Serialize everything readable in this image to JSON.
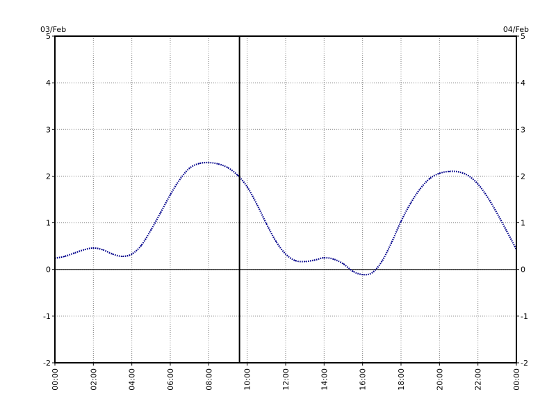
{
  "chart_data": {
    "type": "line",
    "date_left": "03/Feb",
    "date_right": "04/Feb",
    "xlabel": "",
    "ylabel": "",
    "xlim_hours": [
      0,
      24
    ],
    "ylim": [
      -2,
      5
    ],
    "x_ticks": [
      "00:00",
      "02:00",
      "04:00",
      "06:00",
      "08:00",
      "10:00",
      "12:00",
      "14:00",
      "16:00",
      "18:00",
      "20:00",
      "22:00",
      "00:00"
    ],
    "y_ticks": [
      "5",
      "4",
      "3",
      "2",
      "1",
      "0",
      "-1",
      "-2"
    ],
    "grid": true,
    "line_style": "dotted",
    "series_color": "#00008b",
    "marker_time_hours": 9.6,
    "series": [
      {
        "x_hours": [
          0,
          0.5,
          1,
          1.5,
          2,
          2.5,
          3,
          3.5,
          4,
          4.5,
          5,
          5.5,
          6,
          6.5,
          7,
          7.5,
          8,
          8.5,
          9,
          9.5,
          10,
          10.5,
          11,
          11.5,
          12,
          12.5,
          13,
          13.5,
          14,
          14.5,
          15,
          15.5,
          16,
          16.5,
          17,
          17.5,
          18,
          18.5,
          19,
          19.5,
          20,
          20.5,
          21,
          21.5,
          22,
          22.5,
          23,
          23.5,
          24
        ],
        "values": [
          0.24,
          0.28,
          0.35,
          0.42,
          0.46,
          0.42,
          0.33,
          0.28,
          0.33,
          0.52,
          0.85,
          1.22,
          1.6,
          1.93,
          2.17,
          2.27,
          2.29,
          2.26,
          2.18,
          2.02,
          1.77,
          1.4,
          0.98,
          0.6,
          0.33,
          0.19,
          0.17,
          0.2,
          0.25,
          0.22,
          0.12,
          -0.04,
          -0.11,
          -0.07,
          0.17,
          0.57,
          1.03,
          1.42,
          1.73,
          1.95,
          2.06,
          2.1,
          2.09,
          2.01,
          1.83,
          1.55,
          1.2,
          0.82,
          0.43
        ]
      }
    ]
  }
}
